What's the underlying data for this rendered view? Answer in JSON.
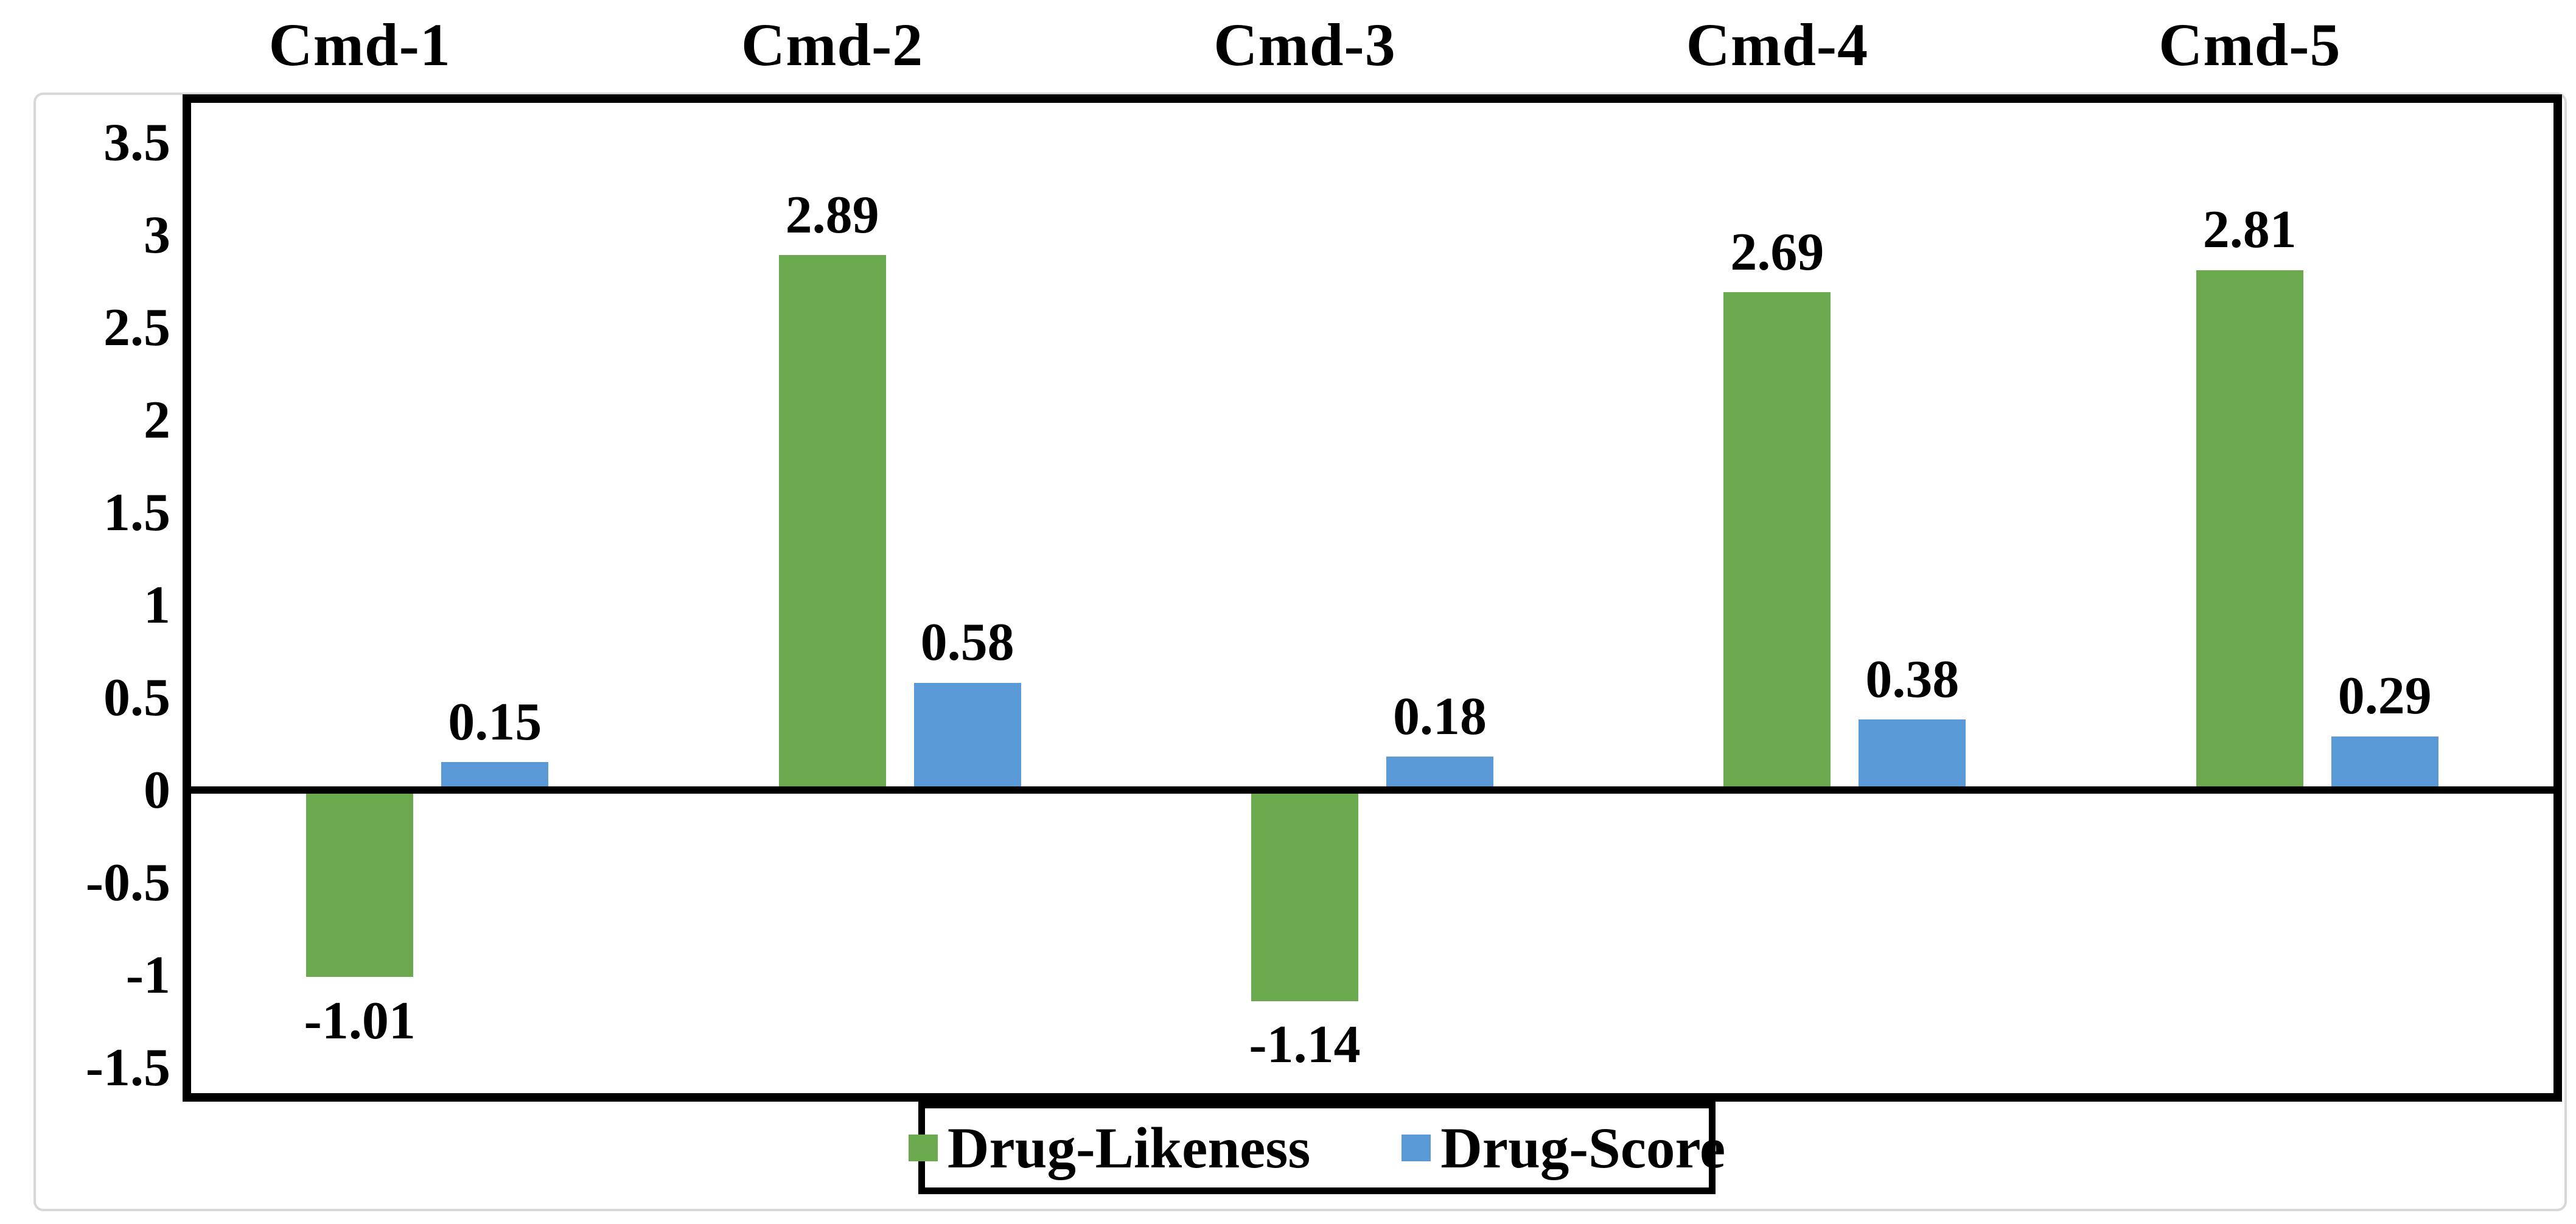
{
  "chart_data": {
    "type": "bar",
    "categories": [
      "Cmd-1",
      "Cmd-2",
      "Cmd-3",
      "Cmd-4",
      "Cmd-5"
    ],
    "series": [
      {
        "name": "Drug-Likeness",
        "color": "#6aa94d",
        "values": [
          -1.01,
          2.89,
          -1.14,
          2.69,
          2.81
        ],
        "labels": [
          "-1.01",
          "2.89",
          "-1.14",
          "2.69",
          "2.81"
        ]
      },
      {
        "name": "Drug-Score",
        "color": "#5899d6",
        "values": [
          0.15,
          0.58,
          0.18,
          0.38,
          0.29
        ],
        "labels": [
          "0.15",
          "0.58",
          "0.18",
          "0.38",
          "0.29"
        ]
      }
    ],
    "y_axis": {
      "ticks": [
        "3.5",
        "3",
        "2.5",
        "2",
        "1.5",
        "1",
        "0.5",
        "0",
        "-0.5",
        "-1",
        "-1.5"
      ],
      "tick_values": [
        3.5,
        3,
        2.5,
        2,
        1.5,
        1,
        0.5,
        0,
        -0.5,
        -1,
        -1.5
      ],
      "min": -1.5,
      "max": 3.5,
      "grid": false
    },
    "legend": {
      "position": "bottom",
      "items": [
        "Drug-Likeness",
        "Drug-Score"
      ]
    },
    "title": "",
    "xlabel": "",
    "ylabel": ""
  },
  "colors": {
    "background": "#ffffff",
    "frame_border": "#d8d8d8",
    "axis": "#000000",
    "text": "#000000"
  }
}
